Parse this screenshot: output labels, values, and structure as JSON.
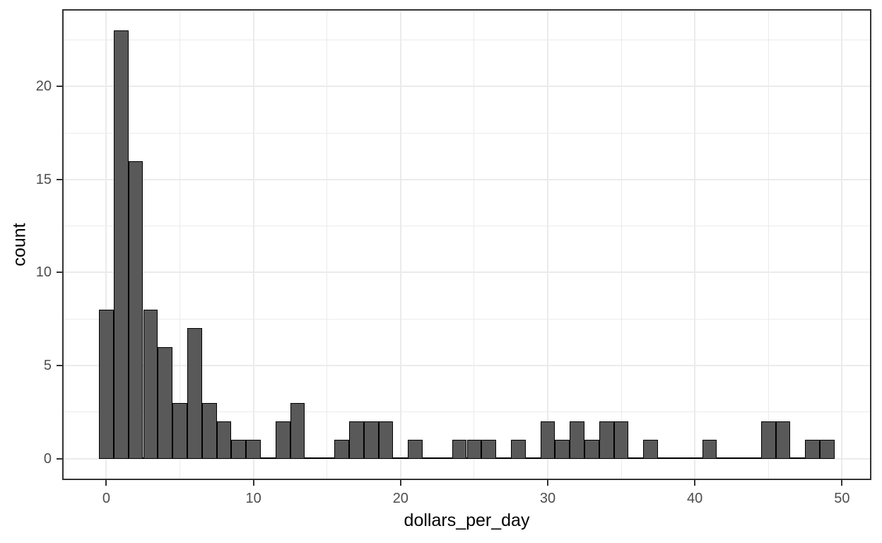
{
  "chart_data": {
    "type": "bar",
    "subtype": "histogram",
    "title": "",
    "xlabel": "dollars_per_day",
    "ylabel": "count",
    "binwidth": 1,
    "bin_centers": [
      0,
      1,
      2,
      3,
      4,
      5,
      6,
      7,
      8,
      9,
      10,
      11,
      12,
      13,
      14,
      15,
      16,
      17,
      18,
      19,
      20,
      21,
      22,
      23,
      24,
      25,
      26,
      27,
      28,
      29,
      30,
      31,
      32,
      33,
      34,
      35,
      36,
      37,
      38,
      39,
      40,
      41,
      42,
      43,
      44,
      45,
      46,
      47,
      48,
      49
    ],
    "counts": [
      8,
      23,
      16,
      8,
      6,
      3,
      7,
      3,
      2,
      1,
      1,
      0,
      2,
      3,
      0,
      0,
      1,
      2,
      2,
      2,
      0,
      1,
      0,
      0,
      1,
      1,
      1,
      0,
      1,
      0,
      2,
      1,
      2,
      1,
      2,
      2,
      0,
      1,
      0,
      0,
      0,
      1,
      0,
      0,
      0,
      2,
      2,
      0,
      1,
      1
    ],
    "x_ticks": [
      0,
      10,
      20,
      30,
      40,
      50
    ],
    "x_minor_breaks": [
      5,
      15,
      25,
      35,
      45
    ],
    "y_ticks": [
      0,
      5,
      10,
      15,
      20
    ],
    "y_minor_breaks": [
      2.5,
      7.5,
      12.5,
      17.5,
      22.5
    ],
    "xlim": [
      -3,
      52
    ],
    "ylim": [
      -1.15,
      24.15
    ],
    "grid": "on",
    "legend": "none",
    "colors": {
      "bar_fill": "#595959",
      "bar_border": "#000000",
      "grid_major": "#ebebeb",
      "grid_minor": "#ebebeb",
      "panel_border": "#333333",
      "tick_mark": "#333333",
      "tick_label": "#4d4d4d",
      "axis_title": "#000000",
      "background": "#ffffff"
    }
  }
}
